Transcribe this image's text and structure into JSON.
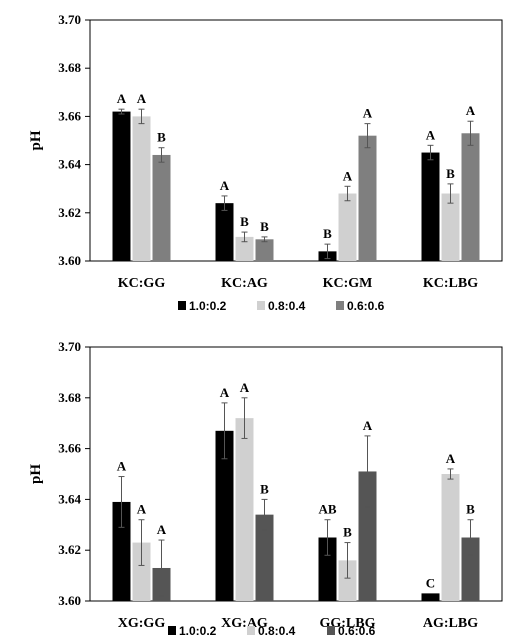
{
  "chart_data": [
    {
      "type": "bar",
      "ylabel": "pH",
      "ylim": [
        3.6,
        3.7
      ],
      "yticks": [
        "3.60",
        "3.62",
        "3.64",
        "3.66",
        "3.68",
        "3.70"
      ],
      "categories": [
        "KC:GG",
        "KC:AG",
        "KC:GM",
        "KC:LBG"
      ],
      "series": [
        {
          "name": "1.0:0.2",
          "color": "#000000",
          "values": [
            3.662,
            3.624,
            3.604,
            3.645
          ],
          "errors": [
            0.001,
            0.003,
            0.003,
            0.003
          ],
          "labels": [
            "A",
            "A",
            "B",
            "A"
          ]
        },
        {
          "name": "0.8:0.4",
          "color": "#d0d0d0",
          "values": [
            3.66,
            3.61,
            3.628,
            3.628
          ],
          "errors": [
            0.003,
            0.002,
            0.003,
            0.004
          ],
          "labels": [
            "A",
            "B",
            "A",
            "B"
          ]
        },
        {
          "name": "0.6:0.6",
          "color": "#7f7f7f",
          "values": [
            3.644,
            3.609,
            3.652,
            3.653
          ],
          "errors": [
            0.003,
            0.001,
            0.005,
            0.005
          ],
          "labels": [
            "B",
            "B",
            "A",
            "A"
          ]
        }
      ],
      "legend_position": "bottom"
    },
    {
      "type": "bar",
      "ylabel": "pH",
      "ylim": [
        3.6,
        3.7
      ],
      "yticks": [
        "3.60",
        "3.62",
        "3.64",
        "3.66",
        "3.68",
        "3.70"
      ],
      "categories": [
        "XG:GG",
        "XG:AG",
        "GG:LBG",
        "AG:LBG"
      ],
      "series": [
        {
          "name": "1.0:0.2",
          "color": "#000000",
          "values": [
            3.639,
            3.667,
            3.625,
            3.603
          ],
          "errors": [
            0.01,
            0.011,
            0.007,
            0.0
          ],
          "labels": [
            "A",
            "A",
            "AB",
            "C"
          ]
        },
        {
          "name": "0.8:0.4",
          "color": "#d0d0d0",
          "values": [
            3.623,
            3.672,
            3.616,
            3.65
          ],
          "errors": [
            0.009,
            0.008,
            0.007,
            0.002
          ],
          "labels": [
            "A",
            "A",
            "B",
            "A"
          ]
        },
        {
          "name": "0.6:0.6",
          "color": "#555555",
          "values": [
            3.613,
            3.634,
            3.651,
            3.625
          ],
          "errors": [
            0.011,
            0.006,
            0.014,
            0.007
          ],
          "labels": [
            "A",
            "B",
            "A",
            "B"
          ]
        }
      ],
      "legend_position": "bottom"
    }
  ]
}
